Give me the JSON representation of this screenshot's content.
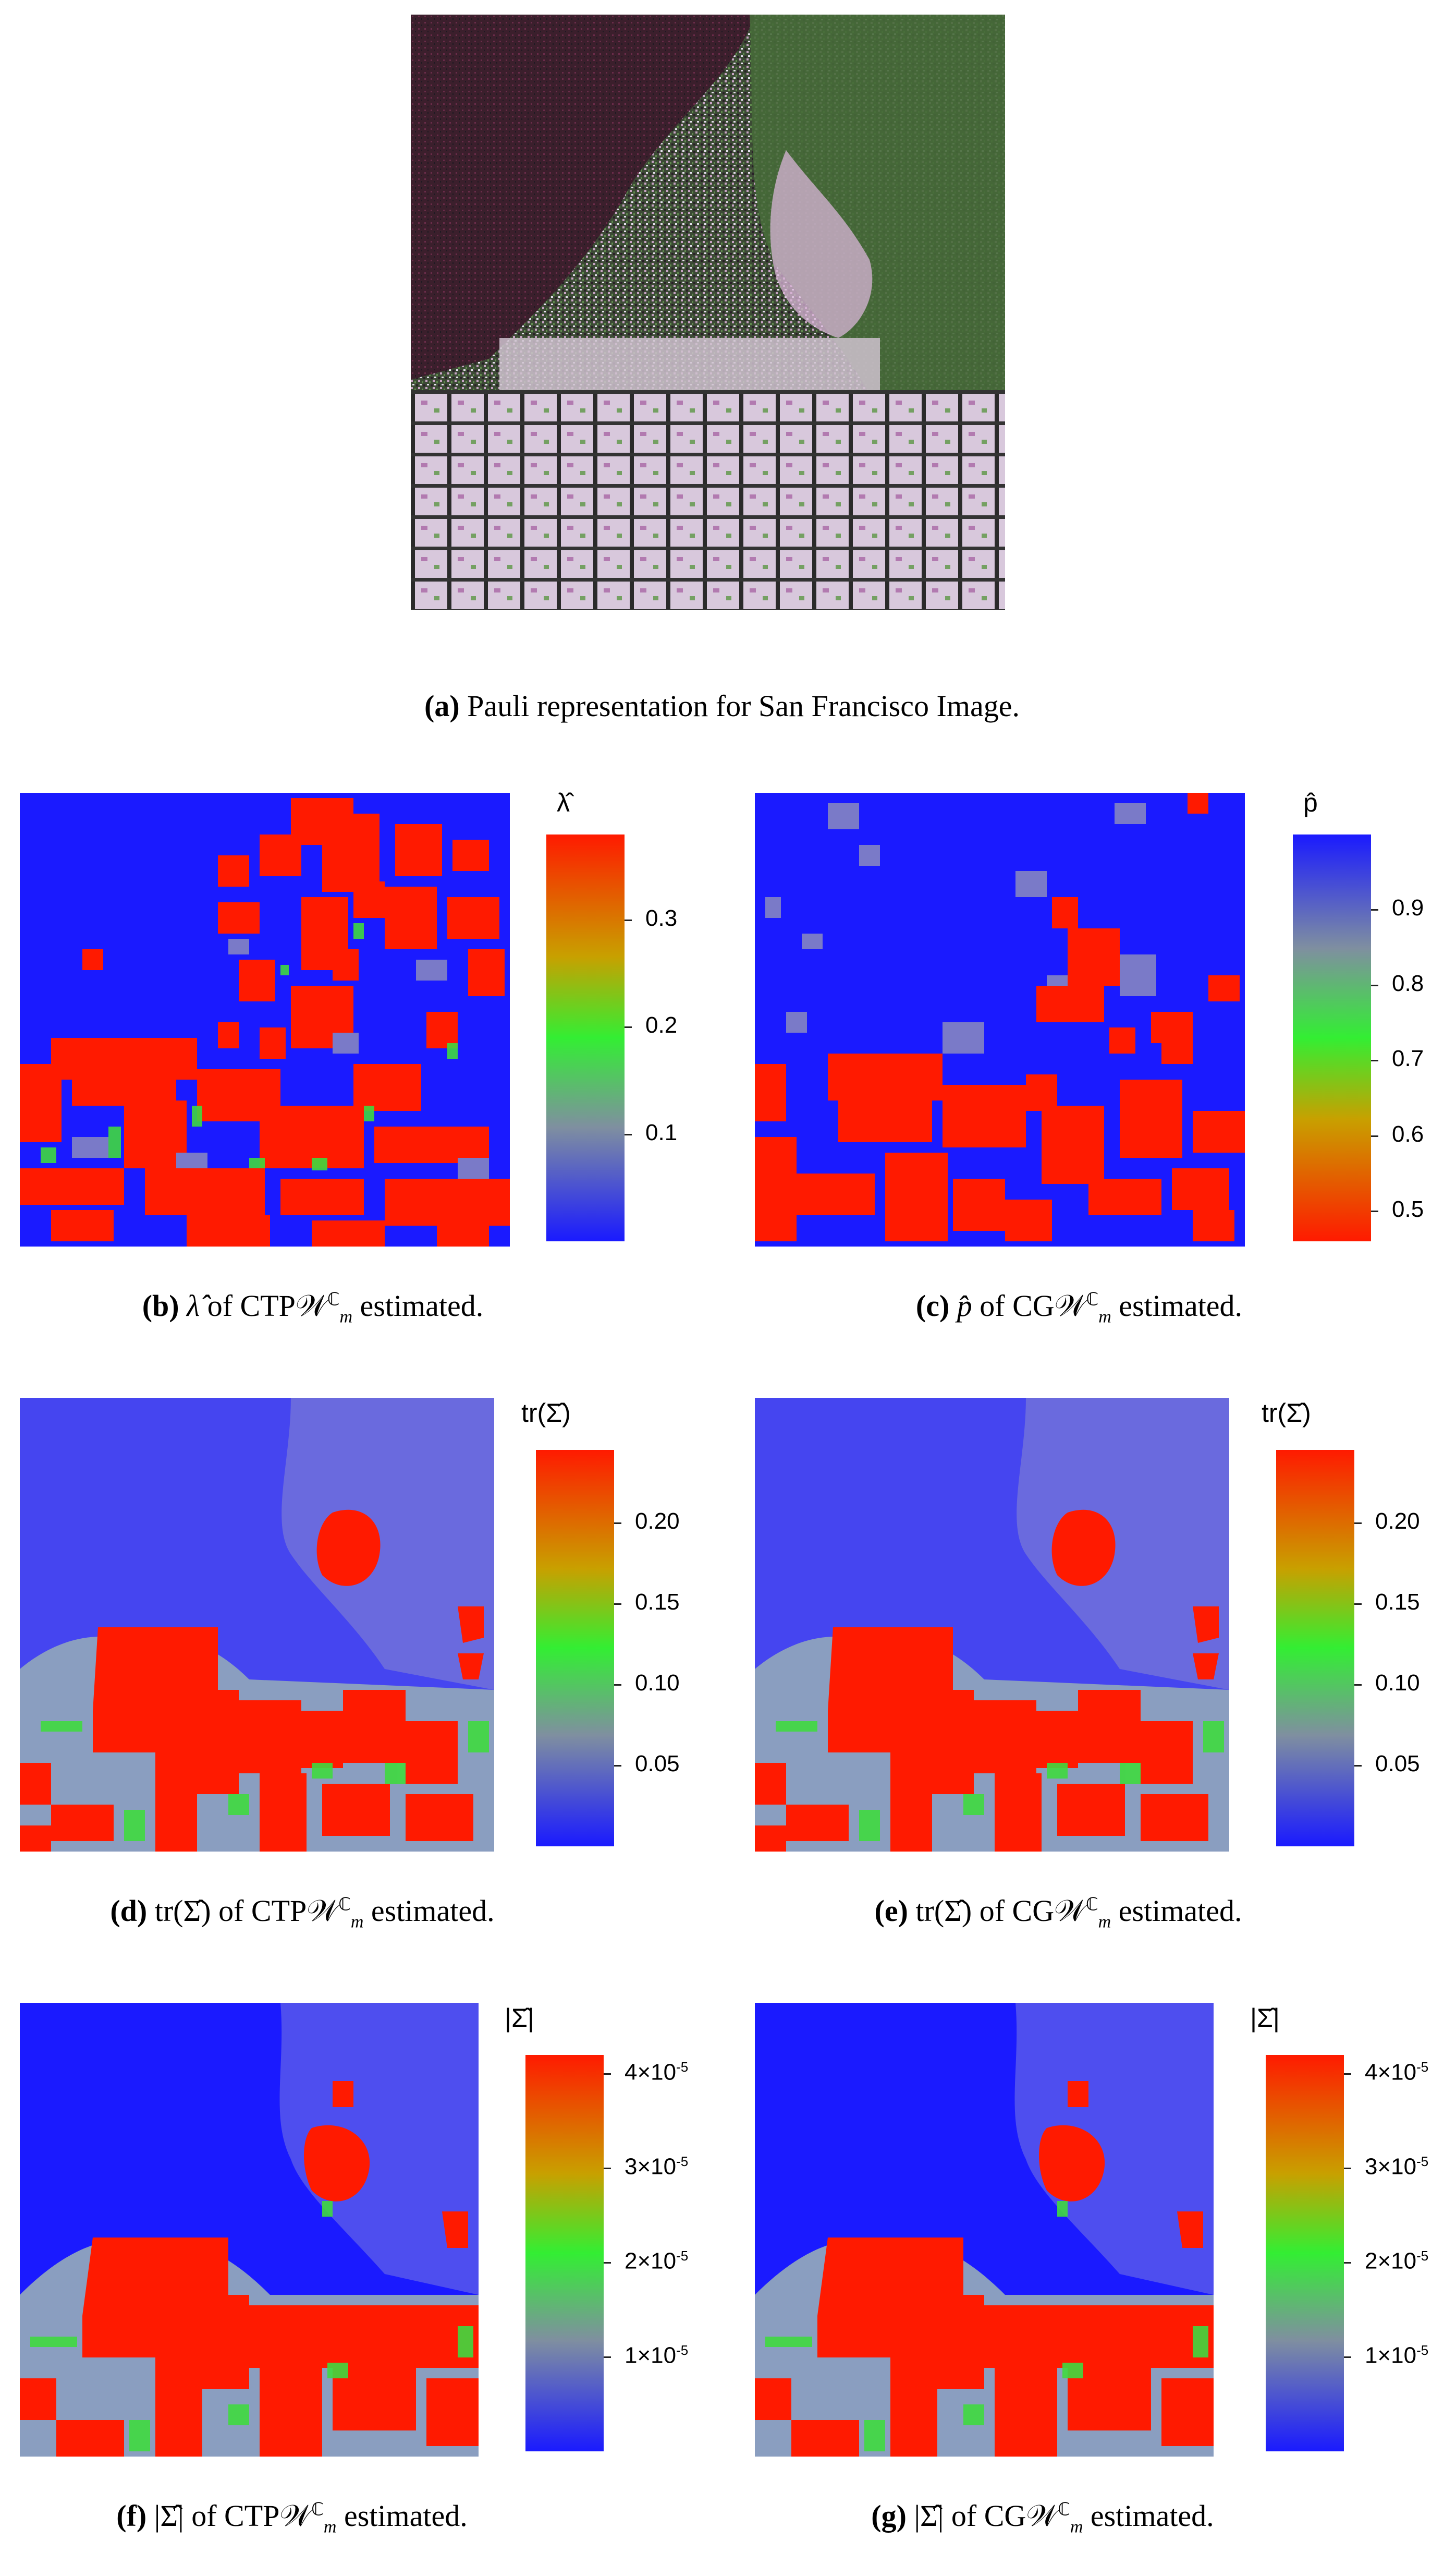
{
  "colors": {
    "map_blue": "#1a1aff",
    "map_red": "#ff1a00",
    "map_green": "#3fd93f",
    "map_gray": "#7a7ac8",
    "pauli_dark": "#3a2a30",
    "pauli_green": "#2f5f2a",
    "pauli_white": "#e8d8e8"
  },
  "panels": {
    "a": {
      "letter": "(a)",
      "caption_text": "Pauli representation for San Francisco Image.",
      "image_icon": "pauli-sar-image"
    },
    "b": {
      "letter": "(b)",
      "symbol": "λ̂",
      "of_text": "of",
      "model": "CTP𝒲",
      "model_sup": "ℂ",
      "model_sub": "m",
      "suffix": "estimated.",
      "colorbar_title": "λ̂",
      "colorbar_ticks": [
        "0.3",
        "0.2",
        "0.1"
      ],
      "colorbar_range": [
        0.0,
        0.38
      ],
      "colorbar_tick_values": [
        0.3,
        0.2,
        0.1
      ]
    },
    "c": {
      "letter": "(c)",
      "symbol": "p̂",
      "of_text": "of",
      "model": "CG𝒲",
      "model_sup": "ℂ",
      "model_sub": "m",
      "suffix": "estimated.",
      "colorbar_title": "p̂",
      "colorbar_ticks": [
        "0.9",
        "0.8",
        "0.7",
        "0.6",
        "0.5"
      ],
      "colorbar_range": [
        0.46,
        1.0
      ],
      "colorbar_tick_values": [
        0.9,
        0.8,
        0.7,
        0.6,
        0.5
      ]
    },
    "d": {
      "letter": "(d)",
      "symbol": "tr(Σ̂)",
      "of_text": "of",
      "model": "CTP𝒲",
      "model_sup": "ℂ",
      "model_sub": "m",
      "suffix": "estimated.",
      "colorbar_title": "tr(Σ̂)",
      "colorbar_ticks": [
        "0.20",
        "0.15",
        "0.10",
        "0.05"
      ],
      "colorbar_range": [
        0.0,
        0.245
      ],
      "colorbar_tick_values": [
        0.2,
        0.15,
        0.1,
        0.05
      ]
    },
    "e": {
      "letter": "(e)",
      "symbol": "tr(Σ̂)",
      "of_text": "of",
      "model": "CG𝒲",
      "model_sup": "ℂ",
      "model_sub": "m",
      "suffix": "estimated.",
      "colorbar_title": "tr(Σ̂)",
      "colorbar_ticks": [
        "0.20",
        "0.15",
        "0.10",
        "0.05"
      ],
      "colorbar_range": [
        0.0,
        0.245
      ],
      "colorbar_tick_values": [
        0.2,
        0.15,
        0.1,
        0.05
      ]
    },
    "f": {
      "letter": "(f)",
      "symbol": "|Σ̂|",
      "of_text": "of",
      "model": "CTP𝒲",
      "model_sup": "ℂ",
      "model_sub": "m",
      "suffix": "estimated.",
      "colorbar_title": "|Σ̂|",
      "colorbar_ticks": [
        "4×10",
        "3×10",
        "2×10",
        "1×10"
      ],
      "colorbar_exp": "-5",
      "colorbar_range": [
        0.0,
        4.2e-05
      ],
      "colorbar_tick_values": [
        4e-05,
        3e-05,
        2e-05,
        1e-05
      ]
    },
    "g": {
      "letter": "(g)",
      "symbol": "|Σ̂|",
      "of_text": "of",
      "model": "CG𝒲",
      "model_sup": "ℂ",
      "model_sub": "m",
      "suffix": "estimated.",
      "colorbar_title": "|Σ̂|",
      "colorbar_ticks": [
        "4×10",
        "3×10",
        "2×10",
        "1×10"
      ],
      "colorbar_exp": "-5",
      "colorbar_range": [
        0.0,
        4.2e-05
      ],
      "colorbar_tick_values": [
        4e-05,
        3e-05,
        2e-05,
        1e-05
      ]
    }
  }
}
